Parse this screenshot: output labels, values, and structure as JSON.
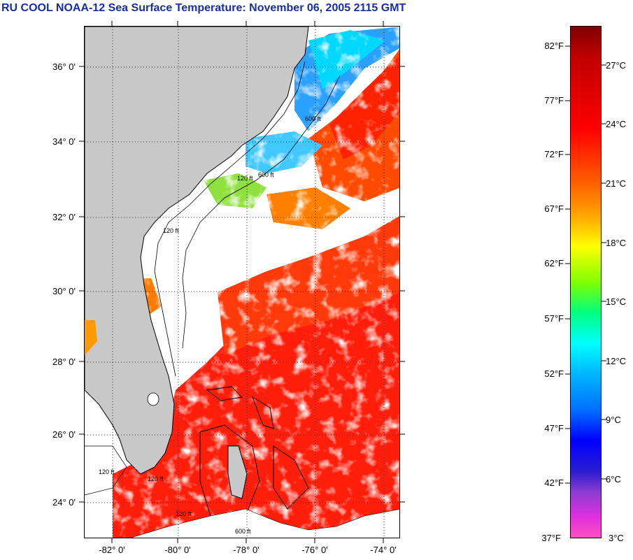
{
  "title": "RU COOL  NOAA-12  Sea Surface Temperature:  November 06, 2005 2115 GMT",
  "latitude_labels": [
    "36° 0'",
    "34° 0'",
    "32° 0'",
    "30° 0'",
    "28° 0'",
    "26° 0'",
    "24° 0'"
  ],
  "longitude_labels": [
    "-82° 0'",
    "-80° 0'",
    "-78° 0'",
    "-76° 0'",
    "-74° 0'"
  ],
  "colorbar": {
    "fahrenheit_labels": [
      "82°F",
      "77°F",
      "72°F",
      "67°F",
      "62°F",
      "57°F",
      "52°F",
      "47°F",
      "42°F",
      "37°F"
    ],
    "celsius_labels": [
      "27°C",
      "24°C",
      "21°C",
      "18°C",
      "15°C",
      "12°C",
      "9°C",
      "6°C",
      "3°C"
    ]
  },
  "bathymetry_labels": [
    "120 ft",
    "600 ft",
    "120 ft",
    "600 ft",
    "120 ft",
    "120 ft",
    "120 ft",
    "600 ft"
  ],
  "colors": {
    "land": "#c8c8c8",
    "cloud": "#ffffff",
    "warm_water": "#ff1e0a",
    "title": "#1a2f9c"
  }
}
